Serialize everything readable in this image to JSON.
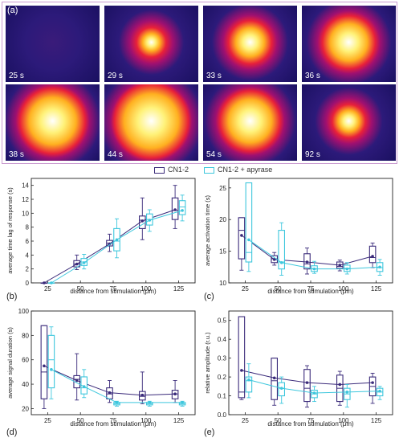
{
  "panel_a": {
    "letter": "(a)",
    "tiles": [
      {
        "label": "25 s",
        "intensity": 0.0
      },
      {
        "label": "29 s",
        "intensity": 0.22
      },
      {
        "label": "33 s",
        "intensity": 0.45
      },
      {
        "label": "36 s",
        "intensity": 0.62
      },
      {
        "label": "38 s",
        "intensity": 0.85
      },
      {
        "label": "44 s",
        "intensity": 1.0
      },
      {
        "label": "54 s",
        "intensity": 0.75
      },
      {
        "label": "92 s",
        "intensity": 0.28
      }
    ]
  },
  "legend": {
    "entries": [
      {
        "name": "CN1-2",
        "color": "#3a2a7a"
      },
      {
        "name": "CN1-2 + apyrase",
        "color": "#3ec7dd"
      }
    ]
  },
  "chart_data": [
    {
      "type": "box",
      "panel": "(b)",
      "xlabel": "distance from stimulation (μm)",
      "ylabel": "average time lag of response (s)",
      "categories": [
        "25",
        "50",
        "75",
        "100",
        "125"
      ],
      "ylim": [
        0,
        15
      ],
      "yticks": [
        "0",
        "2",
        "4",
        "6",
        "8",
        "10",
        "12",
        "14"
      ],
      "series": [
        {
          "name": "CN1-2",
          "mean": [
            0,
            2.7,
            5.6,
            8.9,
            10.5
          ],
          "box": [
            [
              0,
              0,
              0,
              0,
              0
            ],
            [
              1.9,
              2.3,
              2.7,
              3.2,
              4.0
            ],
            [
              4.5,
              5.3,
              5.7,
              6.1,
              7.0
            ],
            [
              6.2,
              7.8,
              9.0,
              9.6,
              12.2
            ],
            [
              7.8,
              9.1,
              10.4,
              12.2,
              14.0
            ]
          ]
        },
        {
          "name": "CN1-2 + apyrase",
          "mean": [
            0,
            2.9,
            6.2,
            9.0,
            10.4
          ],
          "box": [
            [
              0,
              0,
              0,
              0,
              0
            ],
            [
              2.0,
              2.5,
              3.0,
              3.5,
              4.1
            ],
            [
              3.6,
              4.6,
              6.0,
              7.8,
              9.2
            ],
            [
              7.4,
              8.3,
              9.1,
              9.9,
              10.5
            ],
            [
              8.9,
              9.8,
              10.9,
              11.8,
              12.6
            ]
          ]
        }
      ]
    },
    {
      "type": "box",
      "panel": "(c)",
      "xlabel": "distance from stimulation (μm)",
      "ylabel": "average activation time (s)",
      "categories": [
        "25",
        "50",
        "75",
        "100",
        "125"
      ],
      "ylim": [
        10,
        26.5
      ],
      "yticks": [
        "10",
        "15",
        "20",
        "25"
      ],
      "series": [
        {
          "name": "CN1-2",
          "mean": [
            17.5,
            13.7,
            13.3,
            12.8,
            14.2
          ],
          "box": [
            [
              12.0,
              13.8,
              18.3,
              20.3,
              20.3
            ],
            [
              12.8,
              13.2,
              13.8,
              14.3,
              14.8
            ],
            [
              11.4,
              12.2,
              13.0,
              14.6,
              15.5
            ],
            [
              11.9,
              12.3,
              12.6,
              13.3,
              13.6
            ],
            [
              12.4,
              13.2,
              14.0,
              15.8,
              16.3
            ]
          ]
        },
        {
          "name": "CN1-2 + apyrase",
          "mean": [
            16.8,
            13.2,
            12.2,
            12.2,
            12.5
          ],
          "box": [
            [
              11.8,
              13.3,
              14.8,
              25.8,
              25.8
            ],
            [
              11.2,
              12.2,
              13.3,
              18.3,
              19.5
            ],
            [
              11.5,
              11.8,
              12.2,
              12.7,
              13.4
            ],
            [
              11.4,
              11.8,
              12.3,
              12.8,
              13.2
            ],
            [
              11.2,
              11.8,
              12.4,
              13.2,
              13.7
            ]
          ]
        }
      ]
    },
    {
      "type": "box",
      "panel": "(d)",
      "xlabel": "distance from stimulation (μm)",
      "ylabel": "average signal duration (s)",
      "categories": [
        "25",
        "50",
        "75",
        "100",
        "125"
      ],
      "ylim": [
        15,
        100
      ],
      "yticks": [
        "20",
        "40",
        "60",
        "80",
        "100"
      ],
      "series": [
        {
          "name": "CN1-2",
          "mean": [
            55,
            43,
            33,
            31,
            32
          ],
          "box": [
            [
              20,
              28,
              50,
              88,
              88
            ],
            [
              27,
              37,
              44,
              47,
              65
            ],
            [
              25,
              28,
              32,
              37,
              43
            ],
            [
              24,
              27,
              30,
              34,
              50
            ],
            [
              25,
              28,
              32,
              35,
              43
            ]
          ]
        },
        {
          "name": "CN1-2 + apyrase",
          "mean": [
            52,
            38,
            25,
            25,
            25
          ],
          "box": [
            [
              28,
              37,
              60,
              80,
              87
            ],
            [
              29,
              32,
              37,
              46,
              52
            ],
            [
              22,
              23,
              24,
              25,
              26
            ],
            [
              22,
              23,
              24,
              25,
              26
            ],
            [
              22,
              23,
              24,
              25,
              26
            ]
          ]
        }
      ]
    },
    {
      "type": "box",
      "panel": "(e)",
      "xlabel": "distance from stimulation (μm)",
      "ylabel": "relative amplitude (r.u.)",
      "categories": [
        "25",
        "50",
        "75",
        "100",
        "125"
      ],
      "ylim": [
        0,
        0.55
      ],
      "yticks": [
        "0.0",
        "0.1",
        "0.2",
        "0.3",
        "0.4",
        "0.5"
      ],
      "series": [
        {
          "name": "CN1-2",
          "mean": [
            0.235,
            0.195,
            0.17,
            0.16,
            0.17
          ],
          "box": [
            [
              0.08,
              0.09,
              0.12,
              0.52,
              0.52
            ],
            [
              0.05,
              0.08,
              0.18,
              0.3,
              0.3
            ],
            [
              0.04,
              0.07,
              0.14,
              0.24,
              0.26
            ],
            [
              0.05,
              0.07,
              0.14,
              0.21,
              0.23
            ],
            [
              0.06,
              0.1,
              0.15,
              0.2,
              0.22
            ]
          ]
        },
        {
          "name": "CN1-2 + apyrase",
          "mean": [
            0.185,
            0.14,
            0.115,
            0.12,
            0.125
          ],
          "box": [
            [
              0.09,
              0.12,
              0.18,
              0.2,
              0.27
            ],
            [
              0.06,
              0.1,
              0.14,
              0.17,
              0.2
            ],
            [
              0.07,
              0.09,
              0.11,
              0.13,
              0.15
            ],
            [
              0.04,
              0.08,
              0.11,
              0.14,
              0.16
            ],
            [
              0.08,
              0.1,
              0.12,
              0.14,
              0.15
            ]
          ]
        }
      ]
    }
  ]
}
